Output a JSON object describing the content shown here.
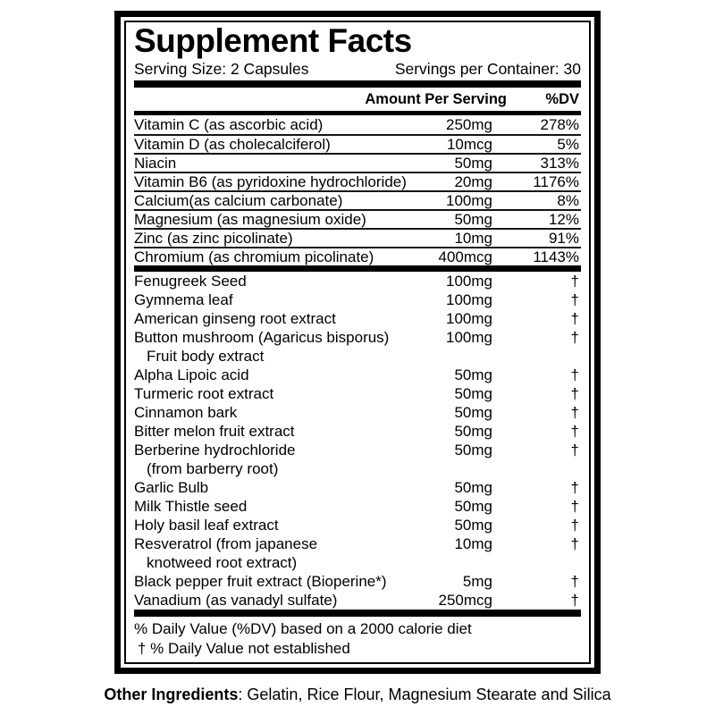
{
  "title": "Supplement Facts",
  "serving": {
    "size": "Serving Size: 2 Capsules",
    "per_container": "Servings per Container: 30"
  },
  "columns": {
    "amount_header": "Amount Per Serving",
    "dv_header": "%DV"
  },
  "vitamins": [
    {
      "name": "Vitamin C (as ascorbic acid)",
      "amount": "250mg",
      "dv": "278%"
    },
    {
      "name": "Vitamin D (as cholecalciferol)",
      "amount": "10mcg",
      "dv": "5%"
    },
    {
      "name": "Niacin",
      "amount": "50mg",
      "dv": "313%"
    },
    {
      "name": "Vitamin B6 (as pyridoxine hydrochloride)",
      "amount": "20mg",
      "dv": "1176%"
    },
    {
      "name": "Calcium(as calcium carbonate)",
      "amount": "100mg",
      "dv": "8%"
    },
    {
      "name": "Magnesium (as magnesium oxide)",
      "amount": "50mg",
      "dv": "12%"
    },
    {
      "name": "Zinc (as zinc picolinate)",
      "amount": "10mg",
      "dv": "91%"
    },
    {
      "name": "Chromium (as chromium picolinate)",
      "amount": "400mcg",
      "dv": "1143%"
    }
  ],
  "botanicals": [
    {
      "lines": [
        "Fenugreek Seed"
      ],
      "amount": "100mg",
      "dv": "†"
    },
    {
      "lines": [
        "Gymnema leaf"
      ],
      "amount": "100mg",
      "dv": "†"
    },
    {
      "lines": [
        "American ginseng root extract"
      ],
      "amount": "100mg",
      "dv": "†"
    },
    {
      "lines": [
        "Button mushroom (Agaricus bisporus)",
        "Fruit body extract"
      ],
      "amount": "100mg",
      "dv": "†"
    },
    {
      "lines": [
        "Alpha Lipoic acid"
      ],
      "amount": "50mg",
      "dv": "†"
    },
    {
      "lines": [
        "Turmeric root extract"
      ],
      "amount": "50mg",
      "dv": "†"
    },
    {
      "lines": [
        "Cinnamon bark"
      ],
      "amount": "50mg",
      "dv": "†"
    },
    {
      "lines": [
        "Bitter melon fruit extract"
      ],
      "amount": "50mg",
      "dv": "†"
    },
    {
      "lines": [
        "Berberine hydrochloride",
        "(from barberry root)"
      ],
      "amount": "50mg",
      "dv": "†"
    },
    {
      "lines": [
        "Garlic Bulb"
      ],
      "amount": "50mg",
      "dv": "†"
    },
    {
      "lines": [
        "Milk Thistle seed"
      ],
      "amount": "50mg",
      "dv": "†"
    },
    {
      "lines": [
        "Holy basil leaf extract"
      ],
      "amount": "50mg",
      "dv": "†"
    },
    {
      "lines": [
        "Resveratrol (from japanese",
        "knotweed root extract)"
      ],
      "amount": "10mg",
      "dv": "†"
    },
    {
      "lines": [
        "Black pepper fruit extract (Bioperine*)"
      ],
      "amount": "5mg",
      "dv": "†"
    },
    {
      "lines": [
        "Vanadium (as vanadyl sulfate)"
      ],
      "amount": "250mcg",
      "dv": "†"
    }
  ],
  "footnotes": [
    "% Daily Value (%DV) based on a 2000 calorie diet",
    "† % Daily Value not established"
  ],
  "other_ingredients": {
    "label": "Other Ingredients",
    "text": ": Gelatin, Rice Flour, Magnesium Stearate and Silica"
  },
  "colors": {
    "ink": "#000000",
    "background": "#ffffff"
  }
}
